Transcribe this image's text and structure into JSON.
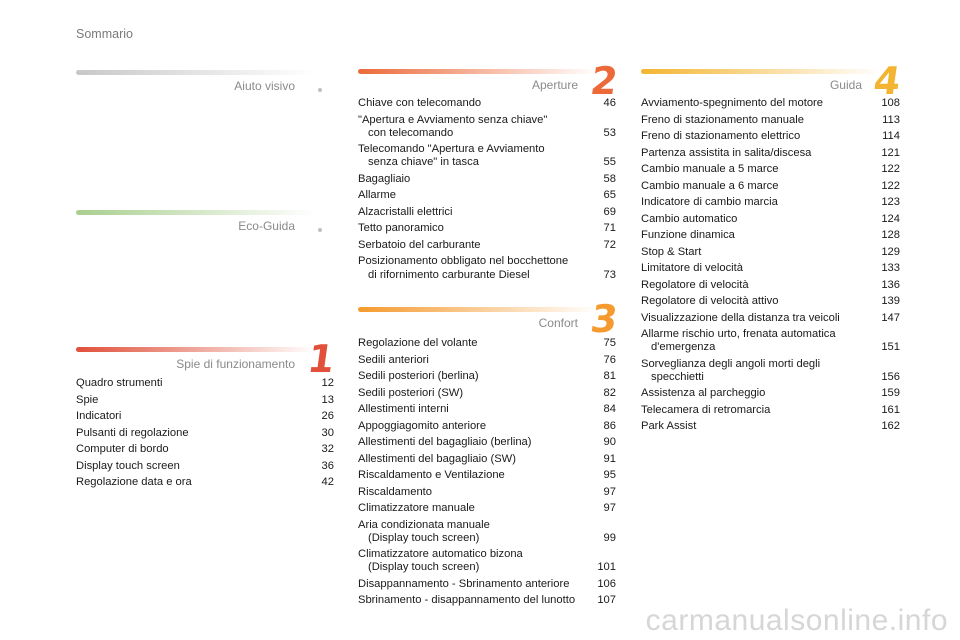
{
  "page_title": "Sommario",
  "sections": {
    "aiuto": {
      "title": "Aiuto visivo"
    },
    "eco": {
      "title": "Eco-Guida"
    },
    "spie": {
      "number": "1",
      "title": "Spie di funzionamento",
      "entries": [
        {
          "label": "Quadro strumenti",
          "page": "12"
        },
        {
          "label": "Spie",
          "page": "13"
        },
        {
          "label": "Indicatori",
          "page": "26"
        },
        {
          "label": "Pulsanti di regolazione",
          "page": "30"
        },
        {
          "label": "Computer di bordo",
          "page": "32"
        },
        {
          "label": "Display touch screen",
          "page": "36"
        },
        {
          "label": "Regolazione data e ora",
          "page": "42"
        }
      ]
    },
    "aperture": {
      "number": "2",
      "title": "Aperture",
      "entries": [
        {
          "label": "Chiave con telecomando",
          "page": "46"
        },
        {
          "label": "\"Apertura e Avviamento senza chiave\"",
          "label2": "con telecomando",
          "page": "53"
        },
        {
          "label": "Telecomando \"Apertura e Avviamento",
          "label2": "senza chiave\" in tasca",
          "page": "55"
        },
        {
          "label": "Bagagliaio",
          "page": "58"
        },
        {
          "label": "Allarme",
          "page": "65"
        },
        {
          "label": "Alzacristalli elettrici",
          "page": "69"
        },
        {
          "label": "Tetto panoramico",
          "page": "71"
        },
        {
          "label": "Serbatoio del carburante",
          "page": "72"
        },
        {
          "label": "Posizionamento obbligato nel bocchettone",
          "label2": "di rifornimento carburante Diesel",
          "page": "73"
        }
      ]
    },
    "comfort": {
      "number": "3",
      "title": "Confort",
      "entries": [
        {
          "label": "Regolazione del volante",
          "page": "75"
        },
        {
          "label": "Sedili anteriori",
          "page": "76"
        },
        {
          "label": "Sedili posteriori (berlina)",
          "page": "81"
        },
        {
          "label": "Sedili posteriori (SW)",
          "page": "82"
        },
        {
          "label": "Allestimenti interni",
          "page": "84"
        },
        {
          "label": "Appoggiagomito anteriore",
          "page": "86"
        },
        {
          "label": "Allestimenti del bagagliaio (berlina)",
          "page": "90"
        },
        {
          "label": "Allestimenti del bagagliaio (SW)",
          "page": "91"
        },
        {
          "label": "Riscaldamento e Ventilazione",
          "page": "95"
        },
        {
          "label": "Riscaldamento",
          "page": "97"
        },
        {
          "label": "Climatizzatore manuale",
          "page": "97"
        },
        {
          "label": "Aria condizionata manuale",
          "label2": "(Display touch screen)",
          "page": "99"
        },
        {
          "label": "Climatizzatore automatico bizona",
          "label2": "(Display touch screen)",
          "page": "101"
        },
        {
          "label": "Disappannamento - Sbrinamento anteriore",
          "page": "106"
        },
        {
          "label": "Sbrinamento - disappannamento del lunotto",
          "page": "107"
        }
      ]
    },
    "guida": {
      "number": "4",
      "title": "Guida",
      "entries": [
        {
          "label": "Avviamento-spegnimento del motore",
          "page": "108"
        },
        {
          "label": "Freno di stazionamento manuale",
          "page": "113"
        },
        {
          "label": "Freno di stazionamento elettrico",
          "page": "114"
        },
        {
          "label": "Partenza assistita in salita/discesa",
          "page": "121"
        },
        {
          "label": "Cambio manuale a 5 marce",
          "page": "122"
        },
        {
          "label": "Cambio manuale a 6 marce",
          "page": "122"
        },
        {
          "label": "Indicatore di cambio marcia",
          "page": "123"
        },
        {
          "label": "Cambio automatico",
          "page": "124"
        },
        {
          "label": "Funzione dinamica",
          "page": "128"
        },
        {
          "label": "Stop & Start",
          "page": "129"
        },
        {
          "label": "Limitatore di velocità",
          "page": "133"
        },
        {
          "label": "Regolatore di velocità",
          "page": "136"
        },
        {
          "label": "Regolatore di velocità attivo",
          "page": "139"
        },
        {
          "label": "Visualizzazione della distanza tra veicoli",
          "page": "147"
        },
        {
          "label": "Allarme rischio urto, frenata automatica",
          "label2": "d'emergenza",
          "page": "151"
        },
        {
          "label": "Sorveglianza degli angoli morti degli",
          "label2": "specchietti",
          "page": "156"
        },
        {
          "label": "Assistenza al parcheggio",
          "page": "159"
        },
        {
          "label": "Telecamera di retromarcia",
          "page": "161"
        },
        {
          "label": "Park Assist",
          "page": "162"
        }
      ]
    }
  },
  "colors": {
    "aiuto_bar": "#b8b8b8",
    "eco_bar": "#a9cf8f",
    "spie_accent": "#e0503a",
    "aperture_accent": "#ec6a3a",
    "comfort_accent": "#f59a2e",
    "guida_accent": "#f3b531"
  },
  "watermark": "carmanualsonline.info"
}
